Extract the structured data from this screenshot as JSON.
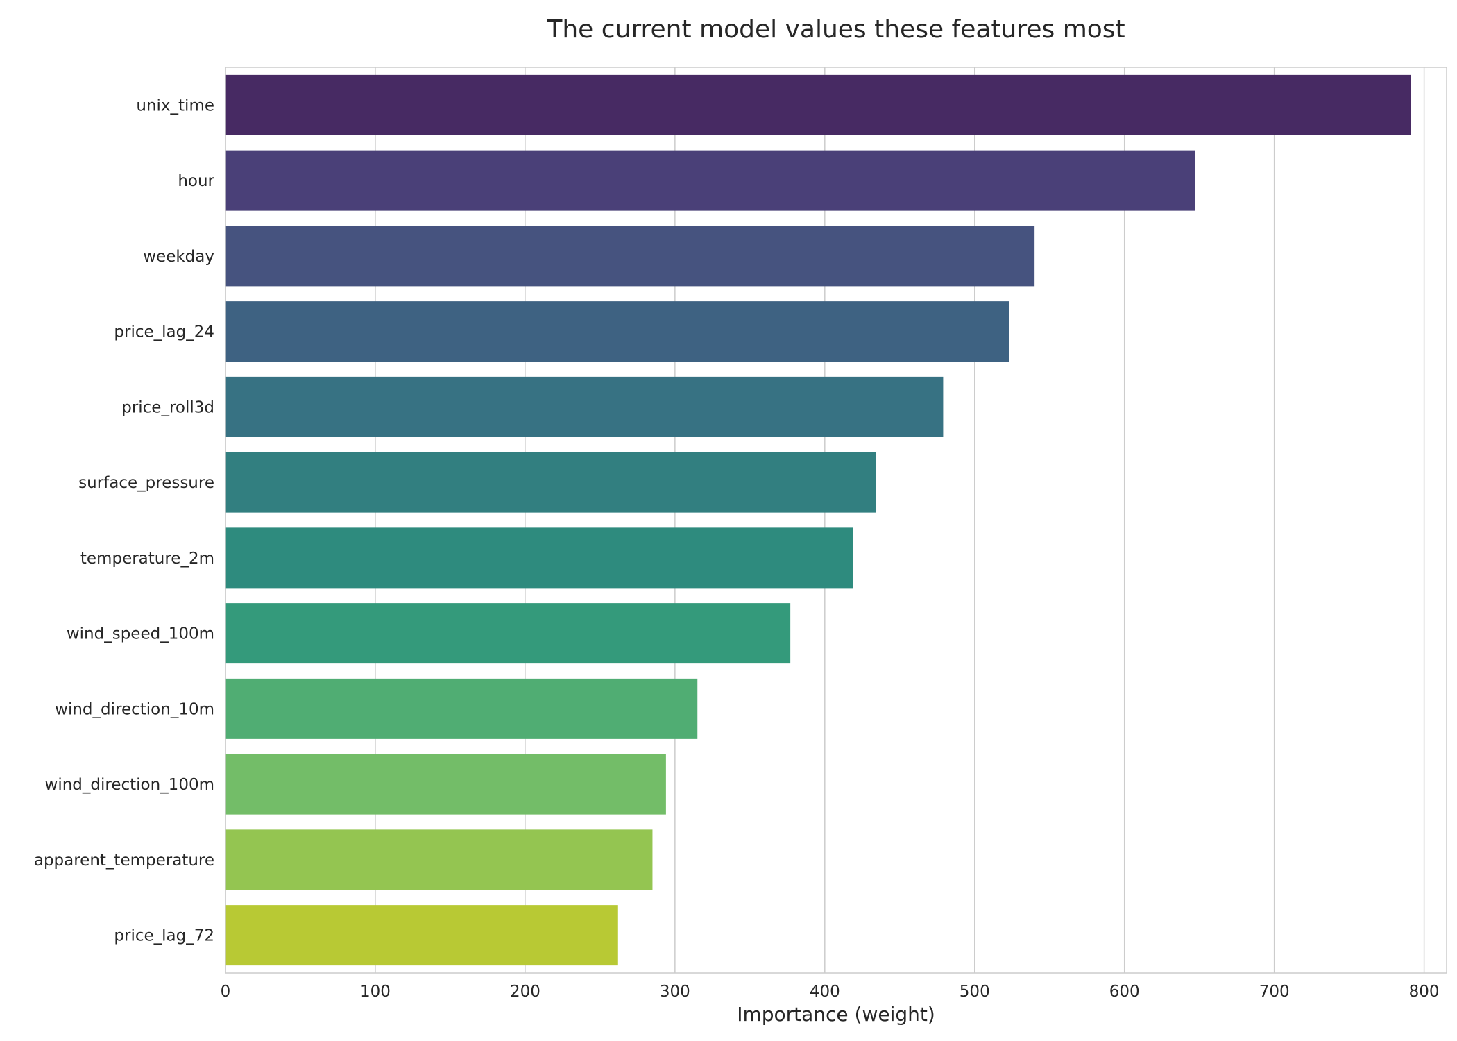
{
  "chart_data": {
    "type": "bar",
    "orientation": "horizontal",
    "title": "The current model values these features most",
    "xlabel": "Importance (weight)",
    "ylabel": "",
    "xlim": [
      0,
      815
    ],
    "xticks": [
      0,
      100,
      200,
      300,
      400,
      500,
      600,
      700,
      800
    ],
    "grid": "vertical",
    "categories": [
      "unix_time",
      "hour",
      "weekday",
      "price_lag_24",
      "price_roll3d",
      "surface_pressure",
      "temperature_2m",
      "wind_speed_100m",
      "wind_direction_10m",
      "wind_direction_100m",
      "apparent_temperature",
      "price_lag_72"
    ],
    "values": [
      791,
      647,
      540,
      523,
      479,
      434,
      419,
      377,
      315,
      294,
      285,
      262
    ],
    "colors": [
      "#472a63",
      "#4a4078",
      "#46537f",
      "#3e6282",
      "#377283",
      "#327f80",
      "#2e8b7e",
      "#349a7b",
      "#50ad73",
      "#73bd68",
      "#94c551",
      "#b8c934"
    ]
  }
}
